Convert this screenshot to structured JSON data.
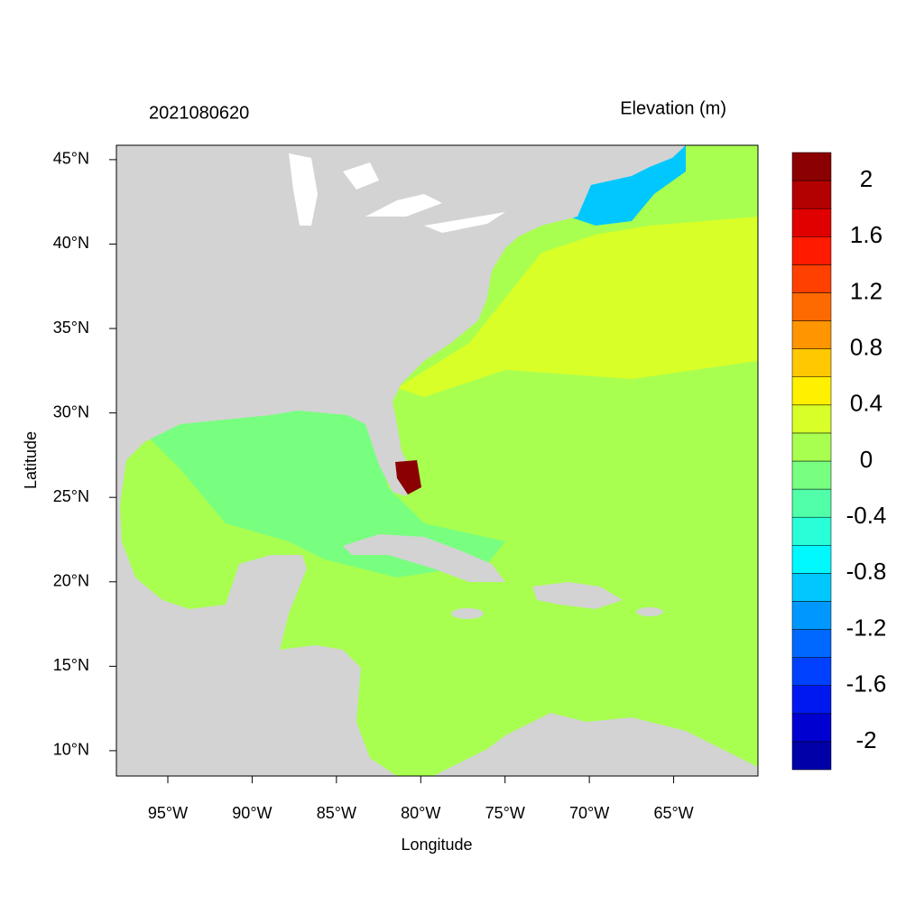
{
  "chart_data": {
    "type": "map",
    "title_left": "2021080620",
    "title_right": "Elevation (m)",
    "xlabel": "Longitude",
    "ylabel": "Latitude",
    "xlim": [
      -98.05,
      -60
    ],
    "ylim": [
      8.5,
      45.85
    ],
    "xticks": [
      {
        "value": -95,
        "label": "95°W"
      },
      {
        "value": -90,
        "label": "90°W"
      },
      {
        "value": -85,
        "label": "85°W"
      },
      {
        "value": -80,
        "label": "80°W"
      },
      {
        "value": -75,
        "label": "75°W"
      },
      {
        "value": -70,
        "label": "70°W"
      },
      {
        "value": -65,
        "label": "65°W"
      }
    ],
    "yticks": [
      {
        "value": 10,
        "label": "10°N"
      },
      {
        "value": 15,
        "label": "15°N"
      },
      {
        "value": 20,
        "label": "20°N"
      },
      {
        "value": 25,
        "label": "25°N"
      },
      {
        "value": 30,
        "label": "30°N"
      },
      {
        "value": 35,
        "label": "35°N"
      },
      {
        "value": 40,
        "label": "40°N"
      },
      {
        "value": 45,
        "label": "45°N"
      }
    ],
    "colorbar": {
      "levels": [
        -2,
        -1.8,
        -1.6,
        -1.4,
        -1.2,
        -1,
        -0.8,
        -0.6,
        -0.4,
        -0.2,
        0,
        0.2,
        0.4,
        0.6,
        0.8,
        1,
        1.2,
        1.4,
        1.6,
        1.8,
        2
      ],
      "colors": [
        "#0000a8",
        "#0000d0",
        "#0018f0",
        "#0040ff",
        "#0068ff",
        "#0098ff",
        "#00c8ff",
        "#00f8ff",
        "#28ffd8",
        "#50ffa8",
        "#78ff80",
        "#a8ff50",
        "#d8ff28",
        "#fff000",
        "#ffc800",
        "#ff9500",
        "#ff6a00",
        "#ff4000",
        "#ff1a00",
        "#e00000",
        "#b30000",
        "#8b0000"
      ],
      "ticks": [
        -2,
        -1.6,
        -1.2,
        -0.8,
        -0.4,
        0,
        0.4,
        0.8,
        1.2,
        1.6,
        2
      ]
    }
  }
}
